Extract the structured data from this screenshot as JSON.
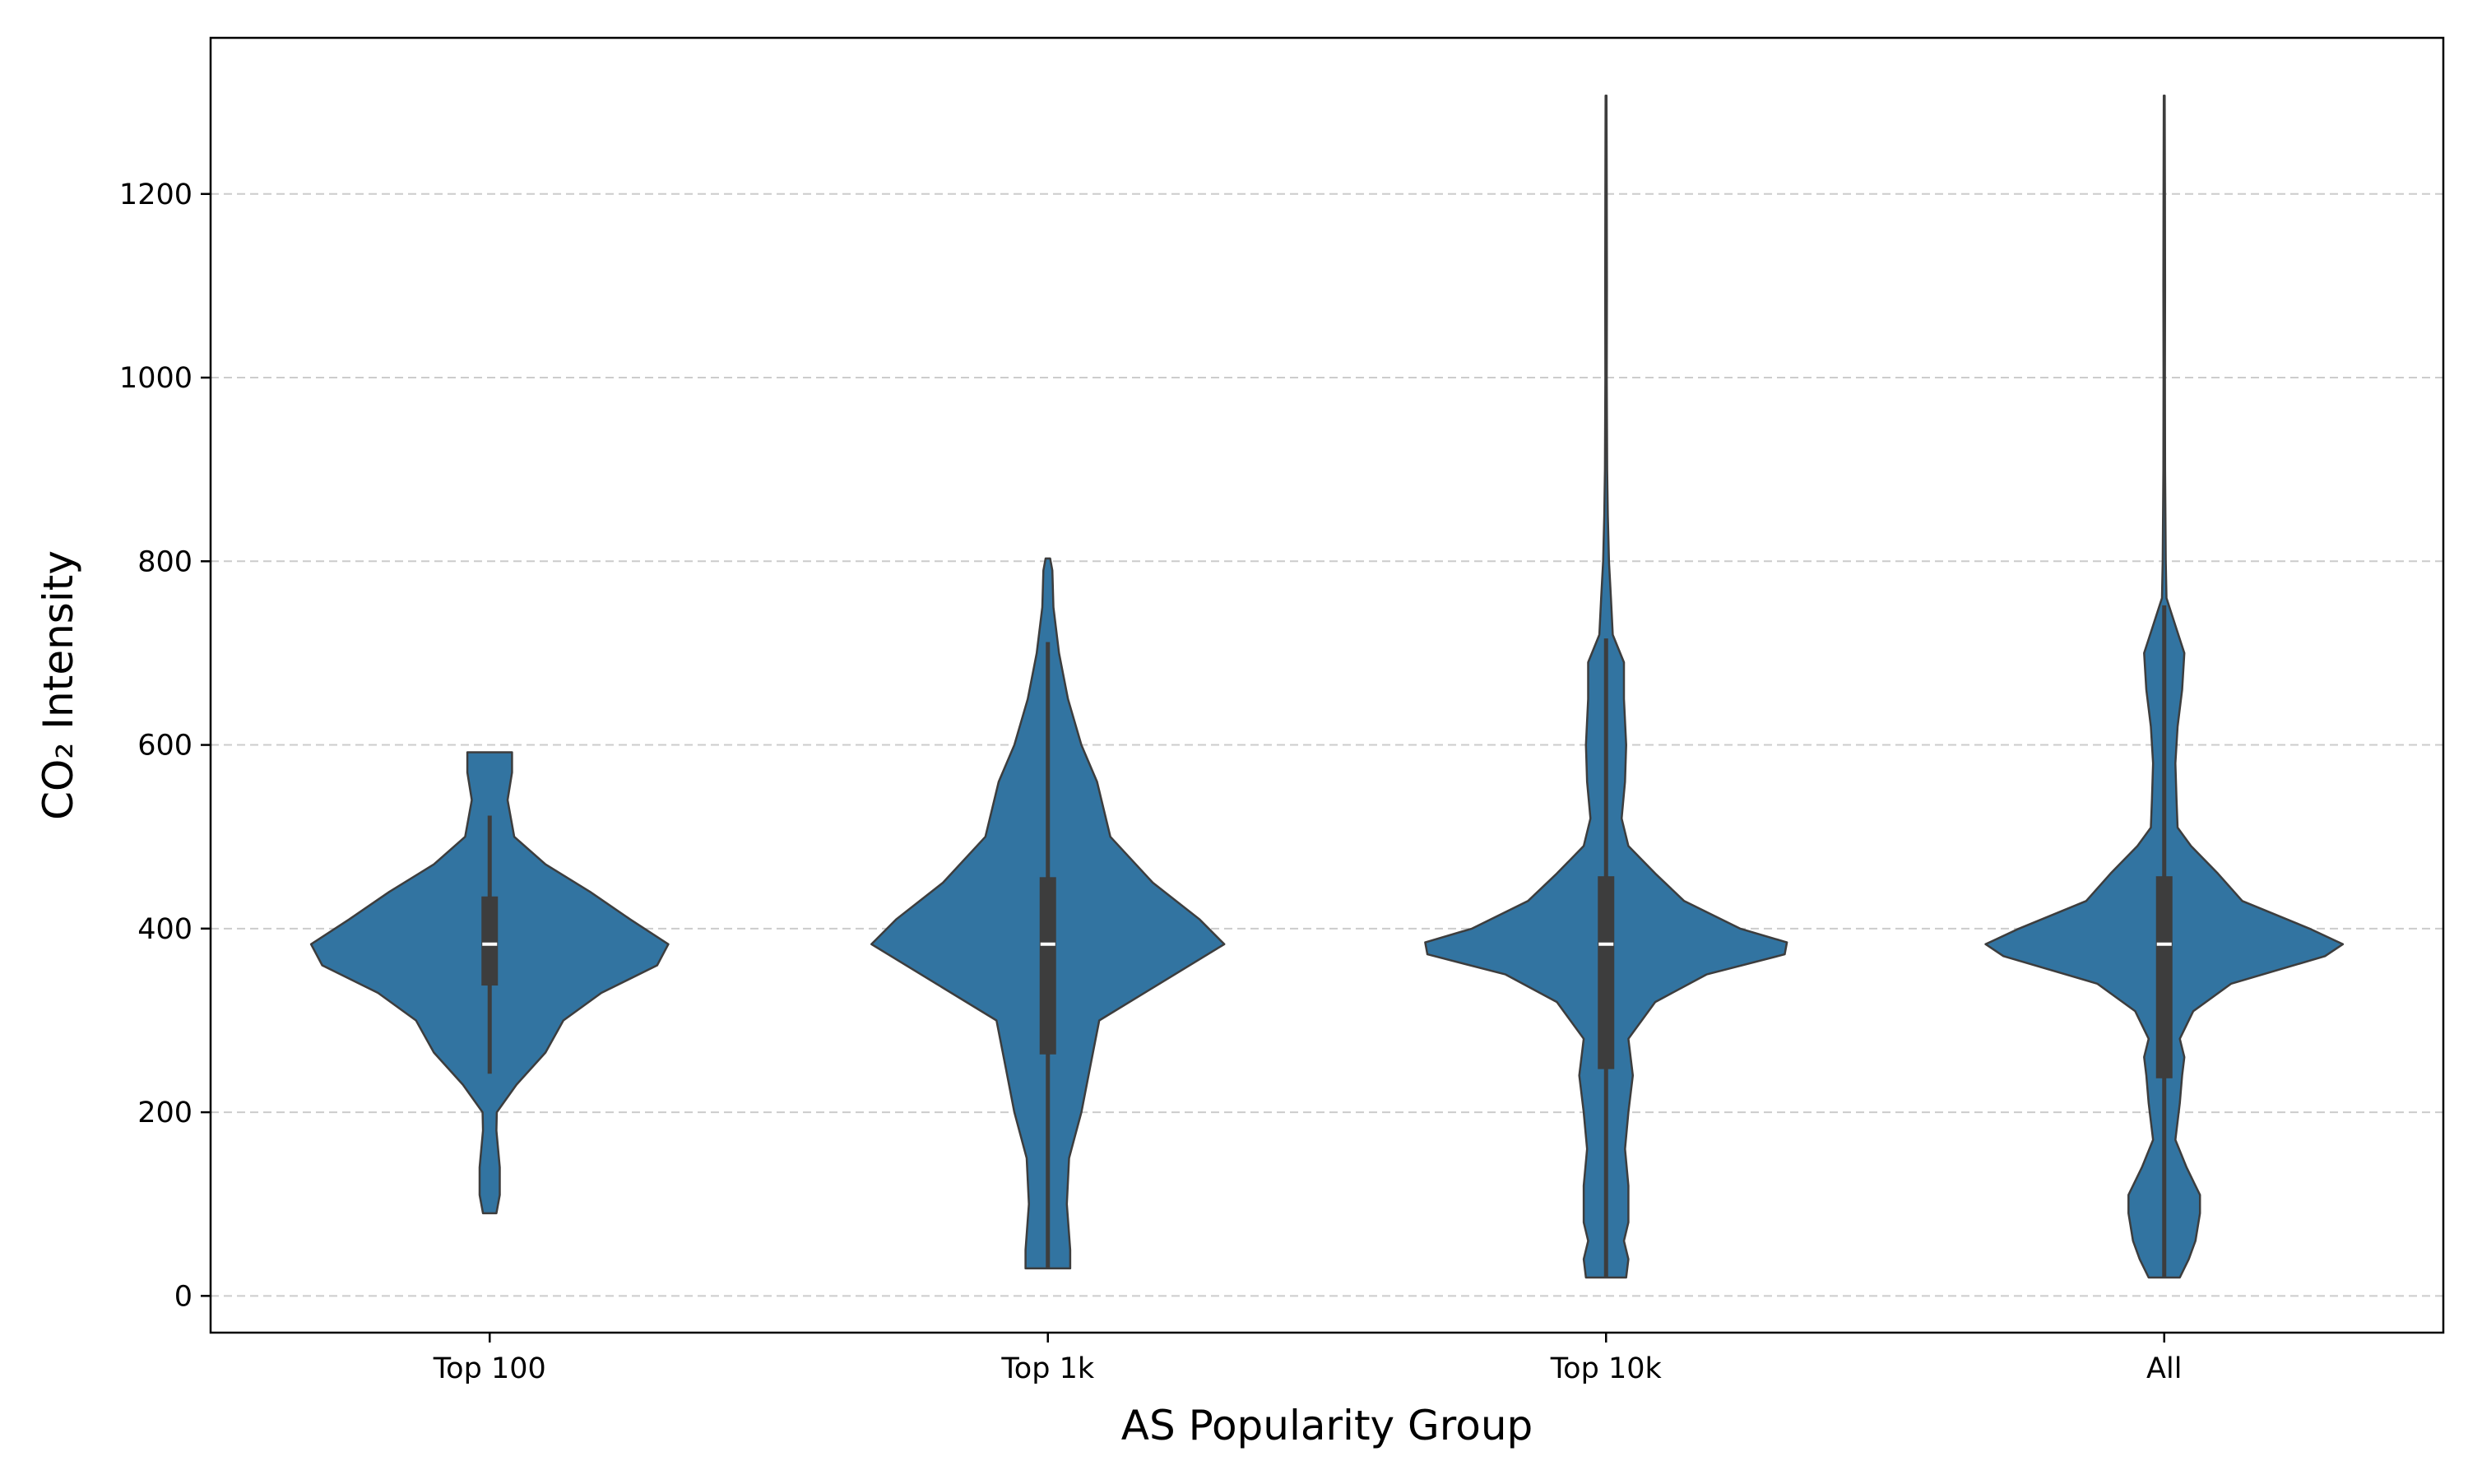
{
  "chart_data": {
    "type": "violin",
    "title": "",
    "xlabel": "AS Popularity Group",
    "ylabel": "CO₂ Intensity",
    "categories": [
      "Top 100",
      "Top 1k",
      "Top 10k",
      "All"
    ],
    "ylim": [
      -40,
      1370
    ],
    "yticks": [
      0,
      200,
      400,
      600,
      800,
      1000,
      1200
    ],
    "grid": "y-dashed",
    "legend": "none",
    "colors": {
      "fill": "#3274a1",
      "edge": "#3d3d3d",
      "box": "#3d3d3d",
      "median": "#ffffff",
      "grid": "#cccccc"
    },
    "series": [
      {
        "name": "Top 100",
        "min": 90,
        "max": 592,
        "box": {
          "q1": 338,
          "median": 383,
          "q3": 435,
          "whisker_low": 242,
          "whisker_high": 523
        },
        "density": [
          [
            90,
            0.03
          ],
          [
            110,
            0.045
          ],
          [
            140,
            0.045
          ],
          [
            180,
            0.03
          ],
          [
            200,
            0.032
          ],
          [
            230,
            0.12
          ],
          [
            265,
            0.25
          ],
          [
            300,
            0.33
          ],
          [
            330,
            0.5
          ],
          [
            360,
            0.75
          ],
          [
            383,
            0.8
          ],
          [
            410,
            0.63
          ],
          [
            440,
            0.45
          ],
          [
            470,
            0.25
          ],
          [
            500,
            0.11
          ],
          [
            540,
            0.08
          ],
          [
            570,
            0.1
          ],
          [
            592,
            0.1
          ]
        ]
      },
      {
        "name": "Top 1k",
        "min": 30,
        "max": 803,
        "box": {
          "q1": 263,
          "median": 383,
          "q3": 456,
          "whisker_low": 30,
          "whisker_high": 712
        },
        "density": [
          [
            30,
            0.1
          ],
          [
            50,
            0.1
          ],
          [
            100,
            0.085
          ],
          [
            150,
            0.095
          ],
          [
            200,
            0.15
          ],
          [
            250,
            0.19
          ],
          [
            300,
            0.23
          ],
          [
            340,
            0.5
          ],
          [
            383,
            0.79
          ],
          [
            410,
            0.68
          ],
          [
            450,
            0.47
          ],
          [
            500,
            0.28
          ],
          [
            530,
            0.25
          ],
          [
            560,
            0.22
          ],
          [
            600,
            0.15
          ],
          [
            650,
            0.09
          ],
          [
            700,
            0.05
          ],
          [
            750,
            0.025
          ],
          [
            790,
            0.02
          ],
          [
            803,
            0.01
          ]
        ]
      },
      {
        "name": "Top 10k",
        "min": 20,
        "max": 1307,
        "box": {
          "q1": 247,
          "median": 383,
          "q3": 457,
          "whisker_low": 20,
          "whisker_high": 716
        },
        "density": [
          [
            20,
            0.09
          ],
          [
            40,
            0.1
          ],
          [
            60,
            0.08
          ],
          [
            80,
            0.1
          ],
          [
            120,
            0.1
          ],
          [
            160,
            0.085
          ],
          [
            200,
            0.1
          ],
          [
            240,
            0.12
          ],
          [
            280,
            0.1
          ],
          [
            320,
            0.22
          ],
          [
            350,
            0.45
          ],
          [
            372,
            0.8
          ],
          [
            385,
            0.81
          ],
          [
            400,
            0.6
          ],
          [
            430,
            0.35
          ],
          [
            460,
            0.22
          ],
          [
            490,
            0.1
          ],
          [
            520,
            0.07
          ],
          [
            560,
            0.085
          ],
          [
            600,
            0.09
          ],
          [
            650,
            0.08
          ],
          [
            690,
            0.08
          ],
          [
            720,
            0.03
          ],
          [
            760,
            0.022
          ],
          [
            800,
            0.013
          ],
          [
            850,
            0.008
          ],
          [
            900,
            0.005
          ],
          [
            1000,
            0.003
          ],
          [
            1100,
            0.004
          ],
          [
            1200,
            0.003
          ],
          [
            1307,
            0.002
          ]
        ]
      },
      {
        "name": "All",
        "min": 20,
        "max": 1307,
        "box": {
          "q1": 237,
          "median": 383,
          "q3": 457,
          "whisker_low": 20,
          "whisker_high": 752
        },
        "density": [
          [
            20,
            0.07
          ],
          [
            40,
            0.11
          ],
          [
            60,
            0.14
          ],
          [
            90,
            0.16
          ],
          [
            110,
            0.16
          ],
          [
            140,
            0.1
          ],
          [
            170,
            0.05
          ],
          [
            210,
            0.07
          ],
          [
            240,
            0.08
          ],
          [
            260,
            0.09
          ],
          [
            280,
            0.07
          ],
          [
            310,
            0.13
          ],
          [
            340,
            0.3
          ],
          [
            370,
            0.72
          ],
          [
            383,
            0.8
          ],
          [
            400,
            0.65
          ],
          [
            430,
            0.35
          ],
          [
            460,
            0.24
          ],
          [
            490,
            0.12
          ],
          [
            510,
            0.06
          ],
          [
            540,
            0.055
          ],
          [
            580,
            0.05
          ],
          [
            620,
            0.06
          ],
          [
            660,
            0.08
          ],
          [
            700,
            0.09
          ],
          [
            730,
            0.05
          ],
          [
            760,
            0.01
          ],
          [
            800,
            0.007
          ],
          [
            900,
            0.004
          ],
          [
            1000,
            0.003
          ],
          [
            1100,
            0.004
          ],
          [
            1200,
            0.003
          ],
          [
            1307,
            0.002
          ]
        ]
      }
    ]
  }
}
